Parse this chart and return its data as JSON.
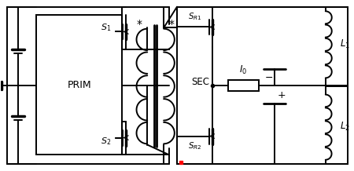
{
  "bg_color": "#ffffff",
  "line_color": "#000000",
  "lw": 1.4
}
